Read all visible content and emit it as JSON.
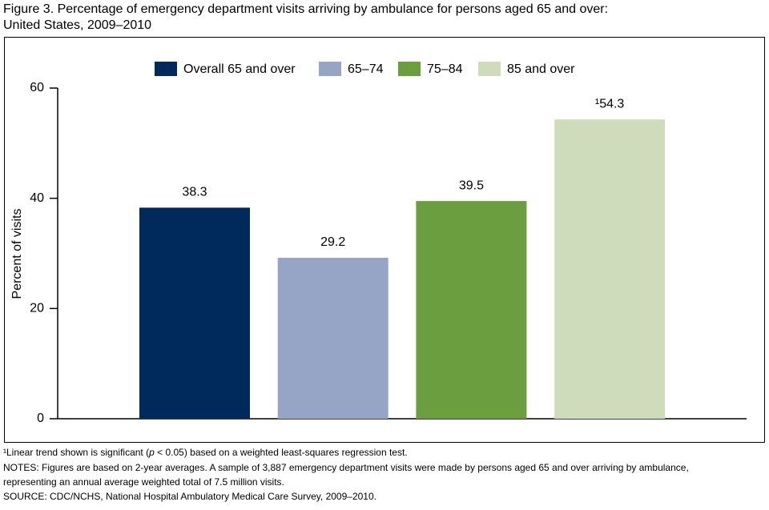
{
  "chart_data": {
    "type": "bar",
    "title": [
      "Figure 3. Percentage of emergency department visits arriving by ambulance for persons aged 65 and over:",
      "United States, 2009–2010"
    ],
    "y_label": "Percent of visits",
    "categories": [
      "Overall 65 and over",
      "65–74",
      "75–84",
      "85 and over"
    ],
    "colors": [
      "#002a5c",
      "#96a5c6",
      "#6a9e3f",
      "#cfdcbc"
    ],
    "values": [
      38.3,
      29.2,
      39.5,
      54.3
    ],
    "value_labels": [
      "38.3",
      "29.2",
      "39.5",
      "¹54.3"
    ],
    "ylim": [
      0,
      60
    ],
    "yticks": [
      0,
      20,
      40,
      60
    ],
    "grid": false,
    "legend": "top",
    "footnotes": [
      [
        "¹Linear trend shown is significant (",
        "p",
        " < 0.05) based on a weighted least-squares regression test."
      ],
      [
        "NOTES: Figures are based on 2-year averages. A sample of 3,887 emergency department visits were made by persons aged 65 and over arriving by ambulance,"
      ],
      [
        "representing an annual average weighted total of 7.5 million visits."
      ],
      [
        "SOURCE: CDC/NCHS, National Hospital Ambulatory Medical Care Survey, 2009–2010."
      ]
    ]
  }
}
